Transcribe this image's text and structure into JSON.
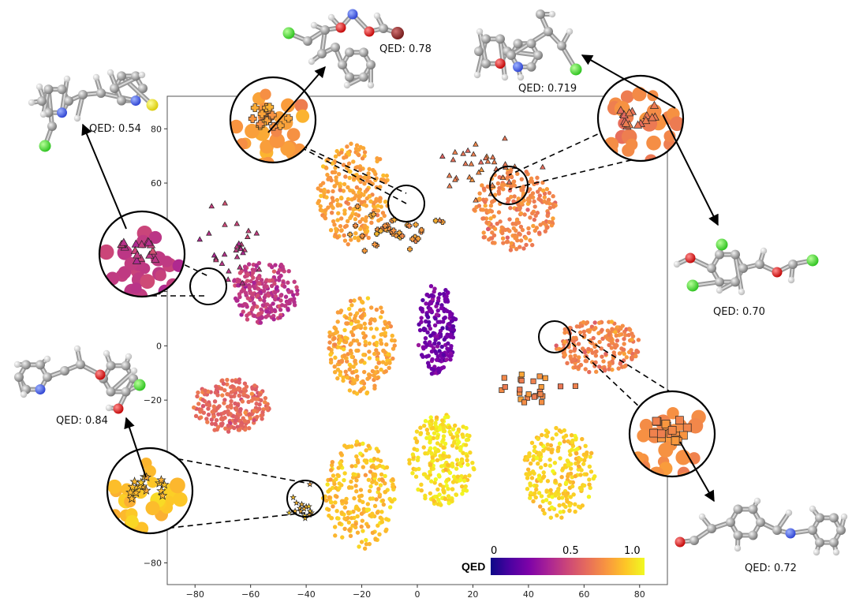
{
  "chart_data": {
    "type": "scatter",
    "title": "",
    "xlabel": "",
    "ylabel": "",
    "xlim": [
      -90,
      90
    ],
    "ylim": [
      -88,
      92
    ],
    "x_ticks": [
      -80,
      -60,
      -40,
      -20,
      0,
      20,
      40,
      60,
      80
    ],
    "y_ticks": [
      80,
      60,
      40,
      20,
      0,
      -20,
      -40,
      -60,
      -80
    ],
    "x_tick_labels": [
      "−80",
      "−60",
      "−40",
      "−20",
      "0",
      "20",
      "40",
      "60",
      "80"
    ],
    "y_tick_labels": [
      "80",
      "60",
      "40",
      "20",
      "0",
      "−20",
      "−40",
      "−60",
      "−80"
    ],
    "grid": false,
    "colorbar": {
      "title": "QED",
      "colormap": "plasma",
      "range": [
        0,
        1.0
      ],
      "tick_labels": [
        "0",
        "0.5",
        "1.0"
      ],
      "tick_values": [
        0,
        0.5,
        1.0
      ]
    },
    "clusters": [
      {
        "cx": -23,
        "cy": 56,
        "rx": 13,
        "ry": 19,
        "qed": 0.78,
        "n": 260
      },
      {
        "cx": 35,
        "cy": 50,
        "rx": 15,
        "ry": 15,
        "qed": 0.71,
        "n": 240
      },
      {
        "cx": -55,
        "cy": 20,
        "rx": 12,
        "ry": 12,
        "qed": 0.45,
        "n": 230
      },
      {
        "cx": 7,
        "cy": 6,
        "rx": 7,
        "ry": 17,
        "qed": 0.22,
        "n": 190
      },
      {
        "cx": -20,
        "cy": 0,
        "rx": 12,
        "ry": 18,
        "qed": 0.8,
        "n": 240
      },
      {
        "cx": 65,
        "cy": 0,
        "rx": 15,
        "ry": 10,
        "qed": 0.7,
        "n": 200
      },
      {
        "cx": -67,
        "cy": -22,
        "rx": 14,
        "ry": 10,
        "qed": 0.62,
        "n": 230
      },
      {
        "cx": 9,
        "cy": -42,
        "rx": 12,
        "ry": 17,
        "qed": 0.94,
        "n": 250
      },
      {
        "cx": 51,
        "cy": -47,
        "rx": 13,
        "ry": 17,
        "qed": 0.9,
        "n": 230
      },
      {
        "cx": -21,
        "cy": -55,
        "rx": 13,
        "ry": 20,
        "qed": 0.86,
        "n": 240
      }
    ],
    "highlighted_series": [
      {
        "marker": "plus",
        "cx": -8,
        "cy": 42,
        "dx": 13,
        "dy": 6,
        "qed": 0.78,
        "n": 40
      },
      {
        "marker": "triangle",
        "cx": 22,
        "cy": 64,
        "dx": 14,
        "dy": 10,
        "qed": 0.68,
        "n": 35
      },
      {
        "marker": "triangle",
        "cx": -66,
        "cy": 36,
        "dx": 8,
        "dy": 12,
        "qed": 0.45,
        "n": 28
      },
      {
        "marker": "square",
        "cx": 43,
        "cy": -15,
        "dx": 9,
        "dy": 6,
        "qed": 0.72,
        "n": 24
      },
      {
        "marker": "star",
        "cx": -42,
        "cy": -60,
        "dx": 4,
        "dy": 4,
        "qed": 0.84,
        "n": 16
      }
    ],
    "annotations": [
      {
        "text": "QED: 0.54"
      },
      {
        "text": "QED: 0.78"
      },
      {
        "text": "QED: 0.719"
      },
      {
        "text": "QED: 0.70"
      },
      {
        "text": "QED: 0.84"
      },
      {
        "text": "QED: 0.72"
      }
    ]
  }
}
